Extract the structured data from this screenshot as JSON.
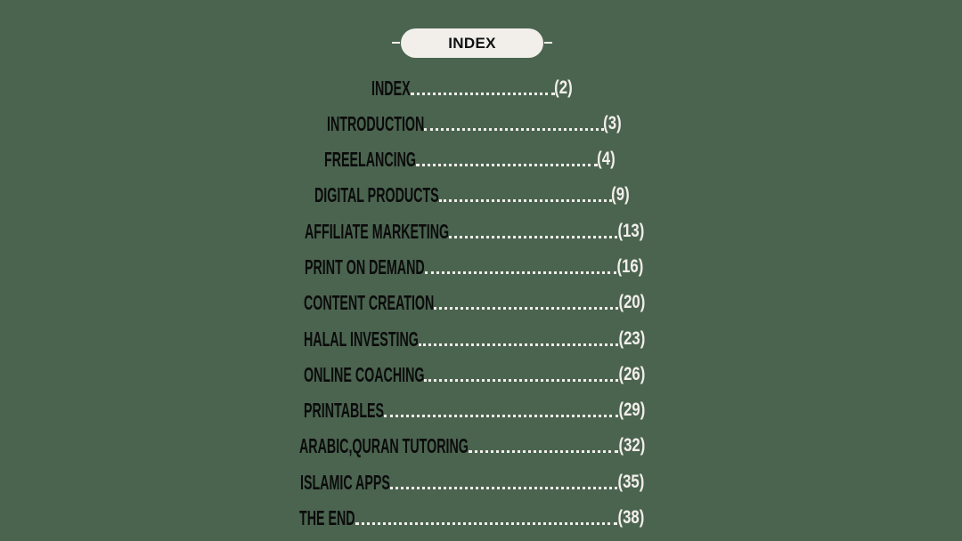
{
  "header": {
    "label": "INDEX"
  },
  "entries": [
    {
      "title": "INDEX",
      "page": "(2)"
    },
    {
      "title": "INTRODUCTION",
      "page": "(3)"
    },
    {
      "title": "FREELANCING",
      "page": "(4)"
    },
    {
      "title": "DIGITAL PRODUCTS",
      "page": "(9)"
    },
    {
      "title": "AFFILIATE MARKETING",
      "page": "(13)"
    },
    {
      "title": "PRINT ON DEMAND",
      "page": "(16)"
    },
    {
      "title": "CONTENT CREATION",
      "page": "(20)"
    },
    {
      "title": "HALAL INVESTING",
      "page": "(23)"
    },
    {
      "title": "ONLINE COACHING",
      "page": "(26)"
    },
    {
      "title": "PRINTABLES",
      "page": "(29)"
    },
    {
      "title": "ARABIC,QURAN TUTORING",
      "page": "(32)"
    },
    {
      "title": "ISLAMIC APPS",
      "page": "(35)"
    },
    {
      "title": "THE END",
      "page": "(38)"
    }
  ],
  "colors": {
    "background": "#4b6450",
    "pill": "#f2efea",
    "title_text": "#0b0b0b",
    "page_text": "#f2efea"
  }
}
